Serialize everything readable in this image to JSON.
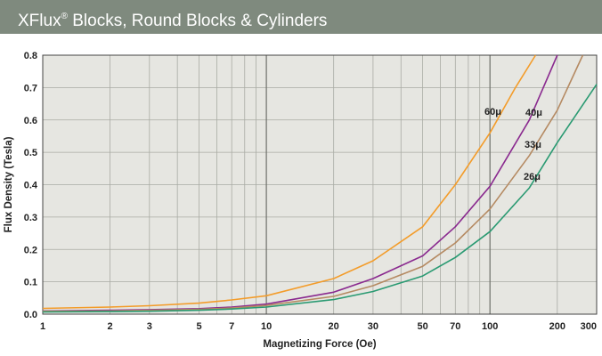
{
  "header": {
    "title_main": "XFlux",
    "title_mark": "®",
    "title_rest": " Blocks, Round Blocks & Cylinders",
    "background": "#7f8a7e"
  },
  "chart_data": {
    "type": "line",
    "xscale": "log",
    "xlim": [
      1,
      300
    ],
    "ylim": [
      0,
      0.8
    ],
    "xlabel": "Magnetizing Force (Oe)",
    "ylabel": "Flux Density (Tesla)",
    "x_tick_labels": [
      "1",
      "2",
      "3",
      "5",
      "7",
      "10",
      "20",
      "30",
      "50",
      "70",
      "100",
      "200",
      "300"
    ],
    "y_tick_labels": [
      "0.0",
      "0.1",
      "0.2",
      "0.3",
      "0.4",
      "0.5",
      "0.6",
      "0.7",
      "0.8"
    ],
    "grid": true,
    "plot_background": "#e6e6e1",
    "series": [
      {
        "name": "60μ",
        "color": "#f39c2a",
        "points": [
          [
            1,
            0.018
          ],
          [
            2,
            0.022
          ],
          [
            3,
            0.026
          ],
          [
            5,
            0.034
          ],
          [
            7,
            0.044
          ],
          [
            10,
            0.057
          ],
          [
            20,
            0.11
          ],
          [
            30,
            0.165
          ],
          [
            50,
            0.27
          ],
          [
            70,
            0.4
          ],
          [
            100,
            0.56
          ],
          [
            130,
            0.7
          ],
          [
            160,
            0.8
          ]
        ]
      },
      {
        "name": "40μ",
        "color": "#8a2a8f",
        "points": [
          [
            1,
            0.01
          ],
          [
            2,
            0.012
          ],
          [
            3,
            0.014
          ],
          [
            5,
            0.017
          ],
          [
            7,
            0.022
          ],
          [
            10,
            0.031
          ],
          [
            20,
            0.068
          ],
          [
            30,
            0.11
          ],
          [
            50,
            0.18
          ],
          [
            70,
            0.27
          ],
          [
            100,
            0.395
          ],
          [
            150,
            0.6
          ],
          [
            200,
            0.8
          ]
        ]
      },
      {
        "name": "33μ",
        "color": "#b58a62",
        "points": [
          [
            1,
            0.009
          ],
          [
            2,
            0.01
          ],
          [
            3,
            0.012
          ],
          [
            5,
            0.015
          ],
          [
            7,
            0.019
          ],
          [
            10,
            0.027
          ],
          [
            20,
            0.055
          ],
          [
            30,
            0.088
          ],
          [
            50,
            0.148
          ],
          [
            70,
            0.22
          ],
          [
            100,
            0.325
          ],
          [
            150,
            0.49
          ],
          [
            200,
            0.63
          ],
          [
            260,
            0.8
          ]
        ]
      },
      {
        "name": "26μ",
        "color": "#2a9a72",
        "points": [
          [
            1,
            0.007
          ],
          [
            2,
            0.008
          ],
          [
            3,
            0.009
          ],
          [
            5,
            0.012
          ],
          [
            7,
            0.016
          ],
          [
            10,
            0.022
          ],
          [
            20,
            0.045
          ],
          [
            30,
            0.07
          ],
          [
            50,
            0.118
          ],
          [
            70,
            0.175
          ],
          [
            100,
            0.255
          ],
          [
            150,
            0.39
          ],
          [
            200,
            0.53
          ],
          [
            300,
            0.71
          ]
        ]
      }
    ]
  }
}
